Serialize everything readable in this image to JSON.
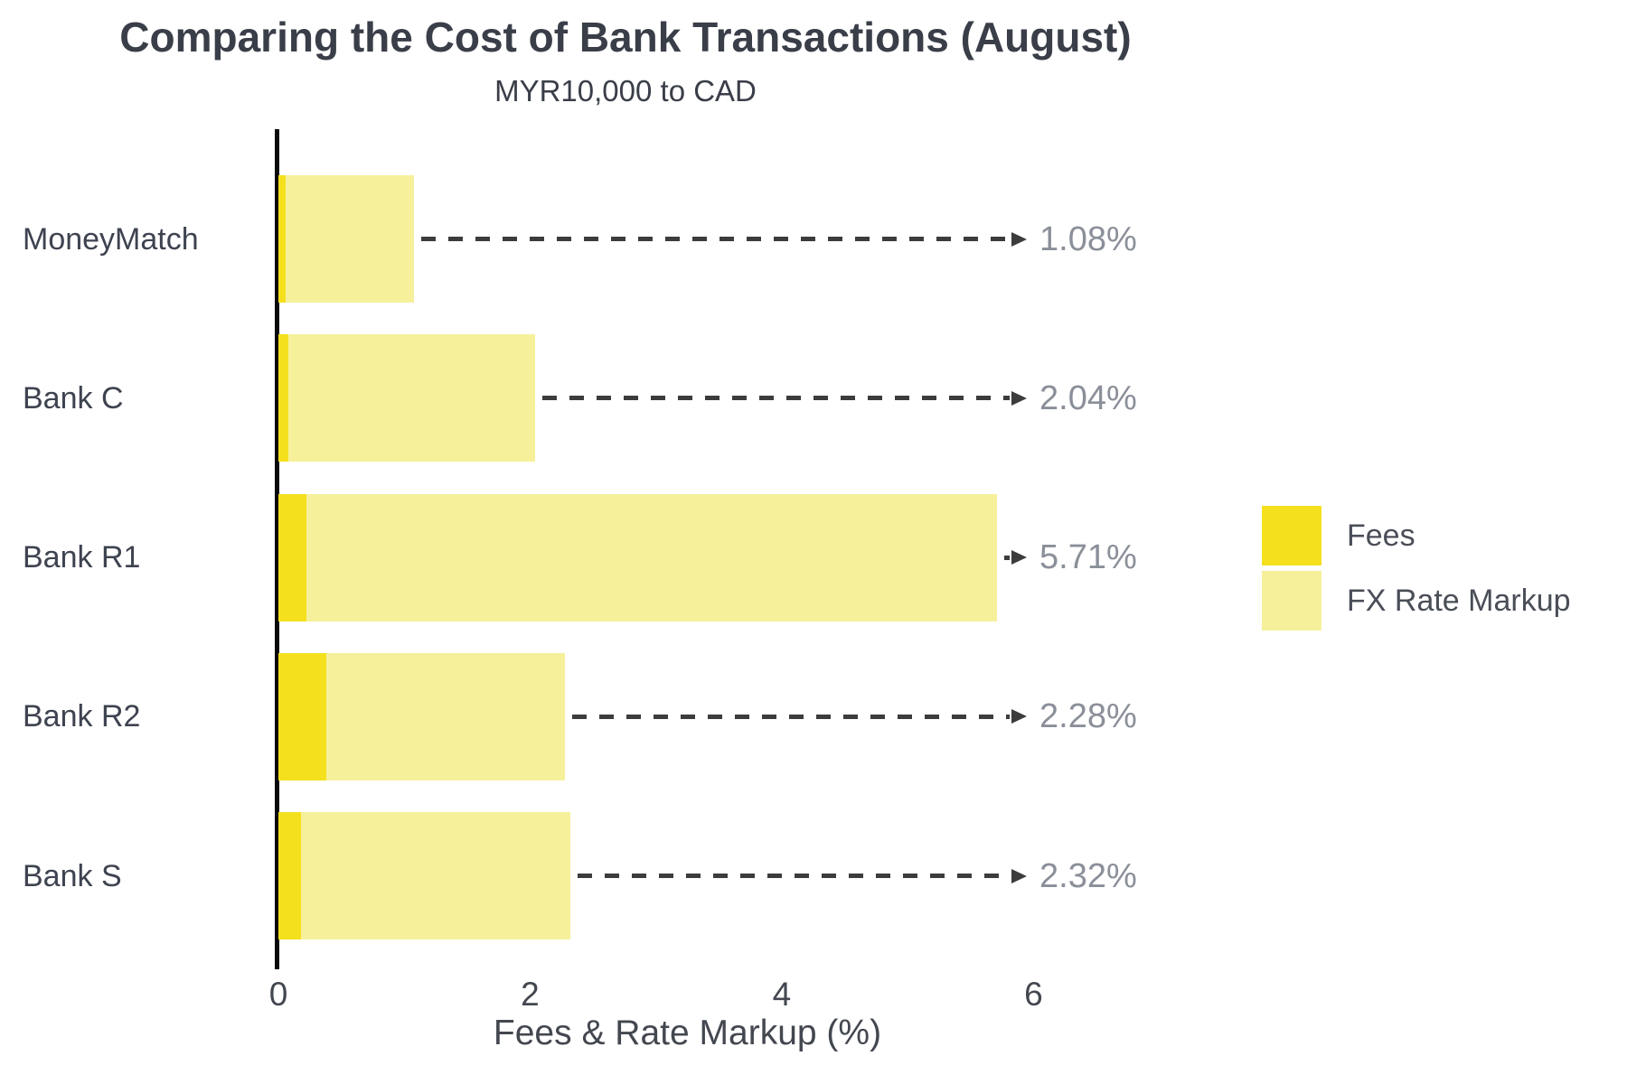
{
  "header": {
    "title": "Comparing the Cost of Bank Transactions (August)",
    "subtitle": "MYR10,000 to CAD"
  },
  "chart_data": {
    "type": "bar",
    "orientation": "horizontal",
    "stacked": true,
    "title": "Comparing the Cost of Bank Transactions (August)",
    "subtitle": "MYR10,000 to CAD",
    "categories": [
      "MoneyMatch",
      "Bank C",
      "Bank R1",
      "Bank R2",
      "Bank S"
    ],
    "series": [
      {
        "name": "Fees",
        "color": "#f5e01e",
        "values": [
          0.06,
          0.08,
          0.22,
          0.38,
          0.18
        ]
      },
      {
        "name": "FX Rate Markup",
        "color": "#f6f09b",
        "values": [
          1.02,
          1.96,
          5.49,
          1.9,
          2.14
        ]
      }
    ],
    "totals": [
      1.08,
      2.04,
      5.71,
      2.28,
      2.32
    ],
    "total_labels": [
      "1.08%",
      "2.04%",
      "5.71%",
      "2.28%",
      "2.32%"
    ],
    "xlabel": "Fees & Rate Markup (%)",
    "x_ticks": [
      0,
      2,
      4,
      6
    ],
    "x_tick_labels": [
      "0",
      "2",
      "4",
      "6"
    ],
    "xlim": [
      0,
      6.5
    ],
    "grid": false,
    "annotation_style": "dashed-arrow-to-total",
    "legend": {
      "position": "right",
      "entries": [
        {
          "label": "Fees",
          "color": "#f5e01e"
        },
        {
          "label": "FX Rate Markup",
          "color": "#f6f09b"
        }
      ]
    }
  },
  "colors": {
    "title_text": "#3a3e48",
    "category_text": "#3e4350",
    "axis_text": "#43474f",
    "value_text": "#8a8f99",
    "arrow": "#3c3c3c",
    "spine": "#0a0a0a",
    "fees": "#f5e01e",
    "fx_markup": "#f6f09b",
    "background": "#ffffff"
  }
}
